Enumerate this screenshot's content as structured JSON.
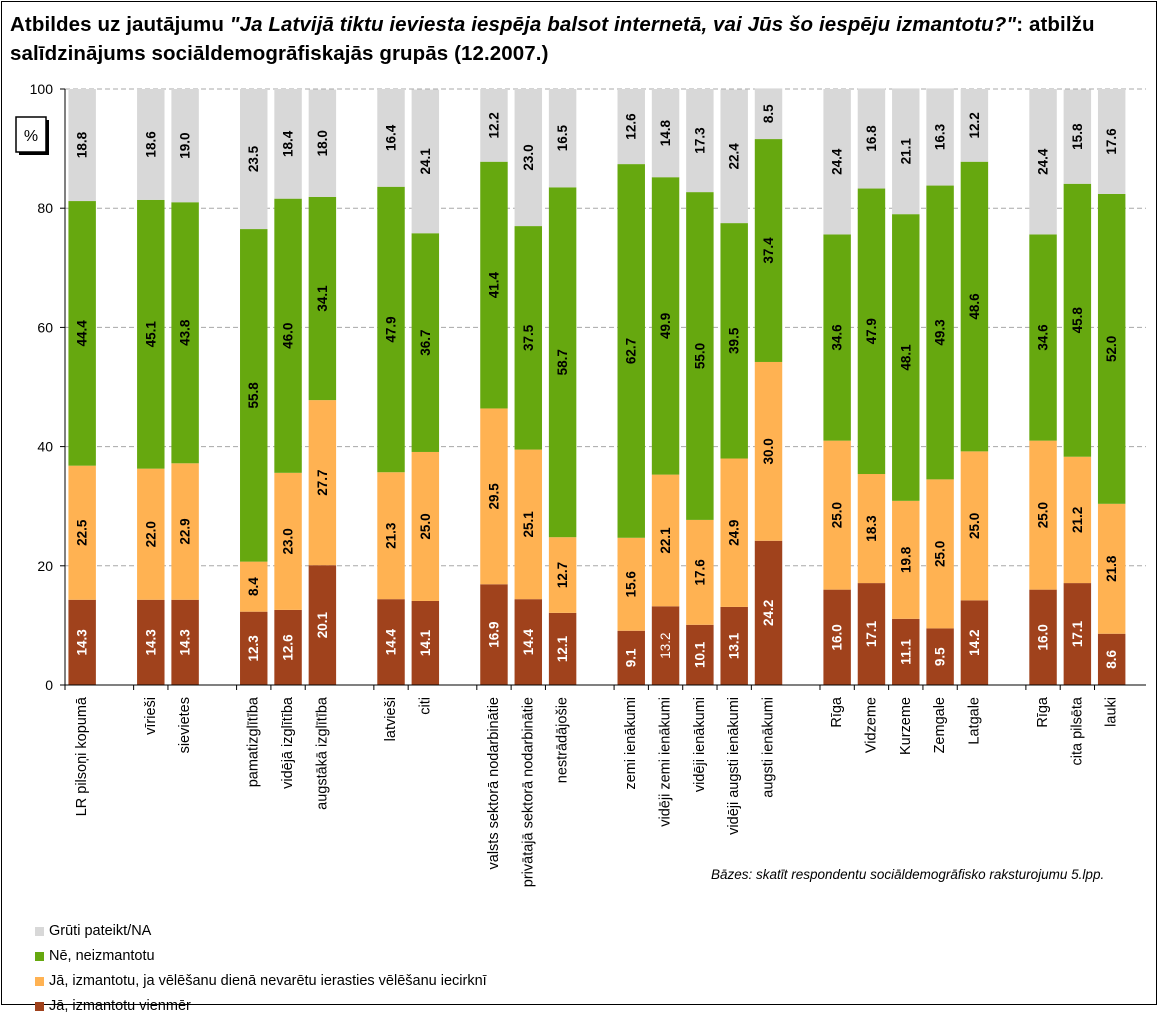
{
  "title": {
    "prefix": "Atbildes uz jautājumu ",
    "question": "\"Ja Latvijā tiktu ieviesta iespēja balsot internetā, vai Jūs šo iespēju izmantotu?\"",
    "suffix": ": atbilžu salīdzinājums sociāldemogrāfiskajās grupās (12.2007.)"
  },
  "unit_label": "%",
  "note": "Bāzes: skatīt respondentu sociāldemogrāfisko raksturojumu 5.lpp.",
  "colors": {
    "vienmer": "#A0421C",
    "neieradisies": "#FFB252",
    "ne": "#66A80F",
    "gruti": "#D8D8D8"
  },
  "chart_data": {
    "type": "bar",
    "stacked": true,
    "ylim": [
      0,
      100
    ],
    "yticks": [
      0,
      20,
      40,
      60,
      80,
      100
    ],
    "grid": true,
    "legend_position": "bottom-left",
    "categories": [
      "LR pilsoņi kopumā",
      "vīrieši",
      "sievietes",
      "pamatizglītība",
      "vidējā izglītība",
      "augstākā izglītība",
      "latvieši",
      "citi",
      "valsts sektorā nodarbinātie",
      "privātajā sektorā nodarbinātie",
      "nestrādājošie",
      "zemi ienākumi",
      "vidēji zemi ienākumi",
      "vidēji ienākumi",
      "vidēji augsti ienākumi",
      "augsti ienākumi",
      "Rīga",
      "Vidzeme",
      "Kurzeme",
      "Zemgale",
      "Latgale",
      "Rīga",
      "cita pilsēta",
      "lauki"
    ],
    "groups": [
      [
        0
      ],
      [
        1,
        2
      ],
      [
        3,
        4,
        5
      ],
      [
        6,
        7
      ],
      [
        8,
        9,
        10
      ],
      [
        11,
        12,
        13,
        14,
        15
      ],
      [
        16,
        17,
        18,
        19,
        20
      ],
      [
        21,
        22,
        23
      ]
    ],
    "series": [
      {
        "name": "Jā, izmantotu vienmēr",
        "color_key": "vienmer",
        "values": [
          14.3,
          14.3,
          14.3,
          12.3,
          12.6,
          20.1,
          14.4,
          14.1,
          16.9,
          14.4,
          12.1,
          9.1,
          13.2,
          10.1,
          13.1,
          24.2,
          16.0,
          17.1,
          11.1,
          9.5,
          14.2,
          16.0,
          17.1,
          8.6
        ]
      },
      {
        "name": "Jā, izmantotu, ja vēlēšanu dienā nevarētu ierasties vēlēšanu iecirknī",
        "color_key": "neieradisies",
        "values": [
          22.5,
          22.0,
          22.9,
          8.4,
          23.0,
          27.7,
          21.3,
          25.0,
          29.5,
          25.1,
          12.7,
          15.6,
          22.1,
          17.6,
          24.9,
          30.0,
          25.0,
          18.3,
          19.8,
          25.0,
          25.0,
          25.0,
          21.2,
          21.8
        ]
      },
      {
        "name": "Nē, neizmantotu",
        "color_key": "ne",
        "values": [
          44.4,
          45.1,
          43.8,
          55.8,
          46.0,
          34.1,
          47.9,
          36.7,
          41.4,
          37.5,
          58.7,
          62.7,
          49.9,
          55.0,
          39.5,
          37.4,
          34.6,
          47.9,
          48.1,
          49.3,
          48.6,
          34.6,
          45.8,
          52.0
        ]
      },
      {
        "name": "Grūti pateikt/NA",
        "color_key": "gruti",
        "values": [
          18.8,
          18.6,
          19.0,
          23.5,
          18.4,
          18.0,
          16.4,
          24.1,
          12.2,
          23.0,
          16.5,
          12.6,
          14.8,
          17.3,
          22.4,
          8.5,
          24.4,
          16.8,
          21.1,
          16.3,
          12.2,
          24.4,
          15.8,
          17.6
        ]
      }
    ],
    "legend_order": [
      3,
      2,
      1,
      0
    ]
  }
}
